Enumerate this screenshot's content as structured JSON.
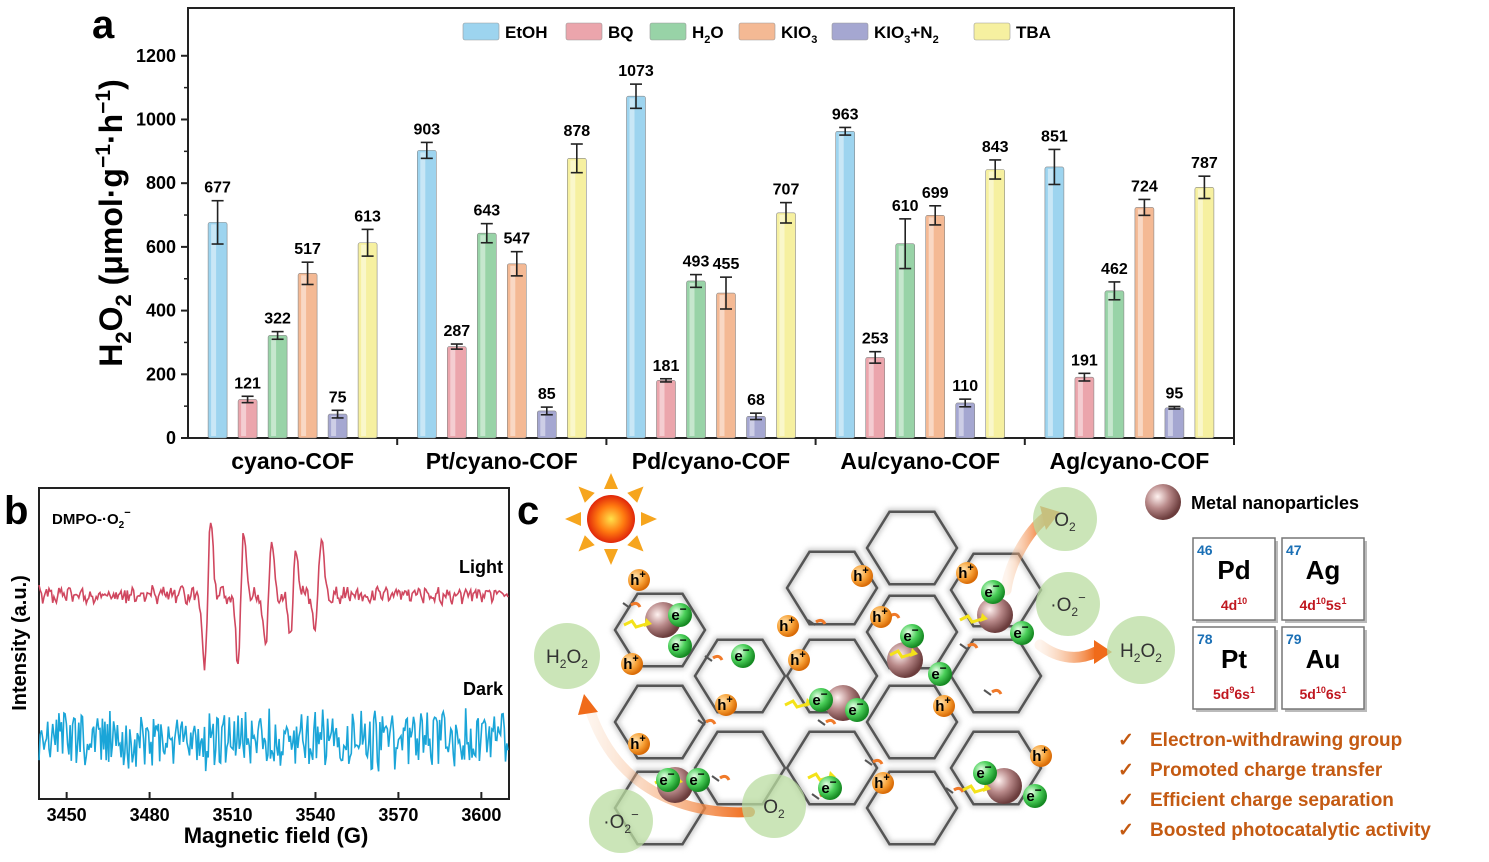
{
  "panel_labels": {
    "a": "a",
    "b": "b",
    "c": "c"
  },
  "chart_data": [
    {
      "type": "bar",
      "panel": "a",
      "categories": [
        "cyano-COF",
        "Pt/cyano-COF",
        "Pd/cyano-COF",
        "Au/cyano-COF",
        "Ag/cyano-COF"
      ],
      "ylabel_main": "H",
      "ylabel_sub": "2",
      "ylabel_mid": "O",
      "ylabel_sub2": "2",
      "ylabel_rest": " (μmol·g",
      "ylabel_sup1": "−1",
      "ylabel_dot": "·h",
      "ylabel_sup2": "−1",
      "ylabel_end": ")",
      "ylim": [
        0,
        1350
      ],
      "yticks": [
        "0",
        "200",
        "400",
        "600",
        "800",
        "1000",
        "1200"
      ],
      "legend_position": "top",
      "series": [
        {
          "name": "EtOH",
          "color": "#9dd4ef",
          "values": [
            677,
            903,
            1073,
            963,
            851
          ],
          "errors": [
            68,
            25,
            38,
            12,
            55
          ]
        },
        {
          "name": "BQ",
          "color": "#eba5ac",
          "values": [
            121,
            287,
            181,
            253,
            191
          ],
          "errors": [
            10,
            8,
            5,
            18,
            12
          ]
        },
        {
          "name": "H2O",
          "color": "#98d3a7",
          "values": [
            322,
            643,
            493,
            610,
            462
          ],
          "errors": [
            12,
            30,
            20,
            78,
            28
          ]
        },
        {
          "name": "KIO3",
          "color": "#f4b994",
          "values": [
            517,
            547,
            455,
            699,
            724
          ],
          "errors": [
            35,
            38,
            50,
            30,
            25
          ]
        },
        {
          "name": "KIO3+N2",
          "color": "#a5a7d1",
          "values": [
            75,
            85,
            68,
            110,
            95
          ],
          "errors": [
            12,
            12,
            10,
            12,
            4
          ]
        },
        {
          "name": "TBA",
          "color": "#f6f0a0",
          "values": [
            613,
            878,
            707,
            843,
            787
          ],
          "errors": [
            42,
            45,
            32,
            30,
            35
          ]
        }
      ],
      "legend_labels": [
        {
          "main": "EtOH",
          "sub": "",
          "rest": "",
          "sub2": ""
        },
        {
          "main": "BQ",
          "sub": "",
          "rest": "",
          "sub2": ""
        },
        {
          "main": "H",
          "sub": "2",
          "rest": "O",
          "sub2": ""
        },
        {
          "main": "KIO",
          "sub": "3",
          "rest": "",
          "sub2": ""
        },
        {
          "main": "KIO",
          "sub": "3",
          "rest": "+N",
          "sub2": "2"
        },
        {
          "main": "TBA",
          "sub": "",
          "rest": "",
          "sub2": ""
        }
      ]
    },
    {
      "type": "line",
      "panel": "b",
      "title": "DMPO-·O",
      "title_sub": "2",
      "title_sup": "−",
      "xlabel": "Magnetic field (G)",
      "ylabel": "Intensity (a.u.)",
      "xlim": [
        3440,
        3610
      ],
      "xticks": [
        "3450",
        "3480",
        "3510",
        "3540",
        "3570",
        "3600"
      ],
      "series": [
        {
          "name": "Light",
          "color": "#d0475f",
          "lines": [
            [
              3500,
              -1
            ],
            [
              3502,
              1
            ],
            [
              3504,
              0
            ],
            [
              3512,
              -0.85
            ],
            [
              3514,
              0.8
            ],
            [
              3516,
              0
            ],
            [
              3522,
              -0.75
            ],
            [
              3524,
              0.75
            ],
            [
              3526,
              0
            ],
            [
              3531,
              -0.55
            ],
            [
              3533,
              0.6
            ],
            [
              3535,
              0
            ],
            [
              3540,
              -0.5
            ],
            [
              3542,
              0.8
            ],
            [
              3544,
              0
            ]
          ]
        },
        {
          "name": "Dark",
          "color": "#1aa5d8"
        }
      ]
    }
  ],
  "diagram": {
    "metal_np_label": "Metal nanoparticles",
    "elements": [
      {
        "number": "46",
        "symbol": "Pd",
        "config_main": "4d",
        "config_sup": "10",
        "config_rest": "",
        "config_sup2": ""
      },
      {
        "number": "47",
        "symbol": "Ag",
        "config_main": "4d",
        "config_sup": "10",
        "config_rest": "5s",
        "config_sup2": "1"
      },
      {
        "number": "78",
        "symbol": "Pt",
        "config_main": "5d",
        "config_sup": "9",
        "config_rest": "6s",
        "config_sup2": "1"
      },
      {
        "number": "79",
        "symbol": "Au",
        "config_main": "5d",
        "config_sup": "10",
        "config_rest": "6s",
        "config_sup2": "1"
      }
    ],
    "features": [
      "Electron-withdrawing group",
      "Promoted charge transfer",
      "Efficient charge separation",
      "Boosted photocatalytic activity"
    ],
    "check_mark": "✓",
    "hole_label": "h",
    "hole_sup": "+",
    "electron_label": "e",
    "electron_sup": "−",
    "o2_main": "O",
    "o2_sub": "2",
    "superoxide_prefix": "·O",
    "superoxide_sub": "2",
    "superoxide_sup": "−",
    "h2o2_h": "H",
    "h2o2_sub1": "2",
    "h2o2_o": "O",
    "h2o2_sub2": "2"
  }
}
